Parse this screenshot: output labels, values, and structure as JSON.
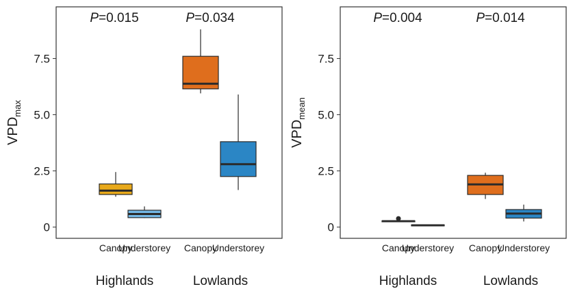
{
  "colors": {
    "highlands_canopy": "#E8A91B",
    "highlands_understorey": "#74B8E6",
    "lowlands_canopy": "#DF6E1D",
    "lowlands_understorey": "#2B86C5",
    "outline": "#2a2a2a"
  },
  "chart_data": [
    {
      "type": "box",
      "ylabel": "VPD",
      "ylabel_sub": "max",
      "yticks": [
        "0",
        "2.5",
        "5.0",
        "7.5"
      ],
      "ytick_values": [
        0,
        2.5,
        5.0,
        7.5
      ],
      "ylim": [
        -0.5,
        9.8
      ],
      "tick_labels": [
        "Canopy",
        "Understorey",
        "Canopy",
        "Understorey"
      ],
      "group_labels": [
        "Highlands",
        "Lowlands"
      ],
      "pvalues": [
        {
          "prefix": "P",
          "value": "=0.015"
        },
        {
          "prefix": "P",
          "value": "=0.034"
        }
      ],
      "boxes": [
        {
          "group": "Highlands",
          "category": "Canopy",
          "whisker_low": 1.35,
          "q1": 1.45,
          "median": 1.62,
          "q3": 1.92,
          "whisker_high": 2.45
        },
        {
          "group": "Highlands",
          "category": "Understorey",
          "whisker_low": 0.4,
          "q1": 0.42,
          "median": 0.58,
          "q3": 0.75,
          "whisker_high": 0.92
        },
        {
          "group": "Lowlands",
          "category": "Canopy",
          "whisker_low": 5.95,
          "q1": 6.15,
          "median": 6.38,
          "q3": 7.6,
          "whisker_high": 8.8
        },
        {
          "group": "Lowlands",
          "category": "Understorey",
          "whisker_low": 1.65,
          "q1": 2.25,
          "median": 2.8,
          "q3": 3.8,
          "whisker_high": 5.9
        }
      ],
      "outliers": []
    },
    {
      "type": "box",
      "ylabel": "VPD",
      "ylabel_sub": "mean",
      "yticks": [
        "0",
        "2.5",
        "5.0",
        "7.5"
      ],
      "ytick_values": [
        0,
        2.5,
        5.0,
        7.5
      ],
      "ylim": [
        -0.5,
        9.8
      ],
      "tick_labels": [
        "Canopy",
        "Understorey",
        "Canopy",
        "Understorey"
      ],
      "group_labels": [
        "Highlands",
        "Lowlands"
      ],
      "pvalues": [
        {
          "prefix": "P",
          "value": "=0.004"
        },
        {
          "prefix": "P",
          "value": "=0.014"
        }
      ],
      "boxes": [
        {
          "group": "Highlands",
          "category": "Canopy",
          "whisker_low": 0.23,
          "q1": 0.24,
          "median": 0.26,
          "q3": 0.28,
          "whisker_high": 0.3
        },
        {
          "group": "Highlands",
          "category": "Understorey",
          "whisker_low": 0.05,
          "q1": 0.06,
          "median": 0.08,
          "q3": 0.1,
          "whisker_high": 0.12
        },
        {
          "group": "Lowlands",
          "category": "Canopy",
          "whisker_low": 1.25,
          "q1": 1.45,
          "median": 1.9,
          "q3": 2.3,
          "whisker_high": 2.42
        },
        {
          "group": "Lowlands",
          "category": "Understorey",
          "whisker_low": 0.25,
          "q1": 0.4,
          "median": 0.6,
          "q3": 0.78,
          "whisker_high": 1.0
        }
      ],
      "outliers": [
        {
          "box": 0,
          "value": 0.38
        }
      ]
    }
  ]
}
